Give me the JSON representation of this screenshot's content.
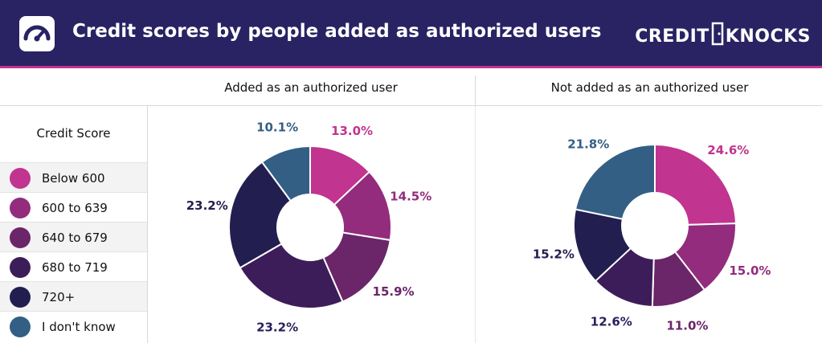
{
  "header": {
    "title": "Credit scores by people added as authorized users",
    "brand_left": "CREDIT",
    "brand_right": "KNOCKS"
  },
  "legend": {
    "title": "Credit Score",
    "items": [
      {
        "label": "Below 600",
        "color": "#c1348f"
      },
      {
        "label": "600 to 639",
        "color": "#932c7d"
      },
      {
        "label": "640 to 679",
        "color": "#6b2569"
      },
      {
        "label": "680 to 719",
        "color": "#3d1d59"
      },
      {
        "label": "720+",
        "color": "#221e4f"
      },
      {
        "label": "I don't know",
        "color": "#335f85"
      }
    ]
  },
  "chart_data": [
    {
      "type": "pie",
      "title": "Added as an authorized user",
      "categories": [
        "Below 600",
        "600 to 639",
        "640 to 679",
        "680 to 719",
        "720+",
        "I don't know"
      ],
      "values": [
        13.0,
        14.5,
        15.9,
        23.2,
        23.2,
        10.1
      ],
      "labels": [
        "13.0%",
        "14.5%",
        "15.9%",
        "23.2%",
        "23.2%",
        "10.1%"
      ],
      "donut": true
    },
    {
      "type": "pie",
      "title": "Not added as an authorized user",
      "categories": [
        "Below 600",
        "600 to 639",
        "640 to 679",
        "680 to 719",
        "720+",
        "I don't know"
      ],
      "values": [
        24.6,
        15.0,
        11.0,
        12.6,
        15.2,
        21.8
      ],
      "labels": [
        "24.6%",
        "15.0%",
        "11.0%",
        "12.6%",
        "15.2%",
        "21.8%"
      ],
      "donut": true
    }
  ]
}
